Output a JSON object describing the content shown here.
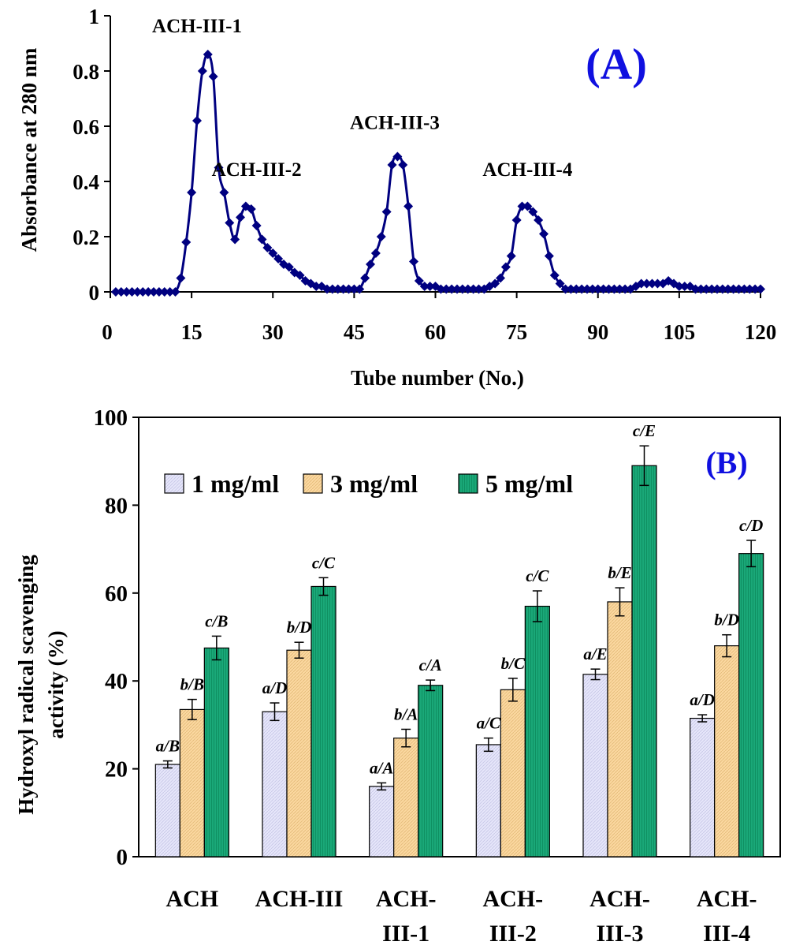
{
  "chart_data": [
    {
      "type": "line",
      "panel_label": "(A)",
      "xlabel": "Tube number (No.)",
      "ylabel": "Absorbance at 280 nm",
      "xlim": [
        0,
        120
      ],
      "ylim": [
        0,
        1
      ],
      "x_ticks": [
        0,
        15,
        30,
        45,
        60,
        75,
        90,
        105,
        120
      ],
      "y_ticks": [
        0,
        0.2,
        0.4,
        0.6,
        0.8,
        1
      ],
      "x_tick_labels": [
        "0",
        "15",
        "30",
        "45",
        "60",
        "75",
        "90",
        "105",
        "120"
      ],
      "y_tick_labels": [
        "0",
        "0.2",
        "0.4",
        "0.6",
        "0.8",
        "1"
      ],
      "color": "#000080",
      "series": [
        {
          "name": "Absorbance",
          "x": [
            1,
            2,
            3,
            4,
            5,
            6,
            7,
            8,
            9,
            10,
            11,
            12,
            13,
            14,
            15,
            16,
            17,
            18,
            19,
            20,
            21,
            22,
            23,
            24,
            25,
            26,
            27,
            28,
            29,
            30,
            31,
            32,
            33,
            34,
            35,
            36,
            37,
            38,
            39,
            40,
            41,
            42,
            43,
            44,
            45,
            46,
            47,
            48,
            49,
            50,
            51,
            52,
            53,
            54,
            55,
            56,
            57,
            58,
            59,
            60,
            61,
            62,
            63,
            64,
            65,
            66,
            67,
            68,
            69,
            70,
            71,
            72,
            73,
            74,
            75,
            76,
            77,
            78,
            79,
            80,
            81,
            82,
            83,
            84,
            85,
            86,
            87,
            88,
            89,
            90,
            91,
            92,
            93,
            94,
            95,
            96,
            97,
            98,
            99,
            100,
            101,
            102,
            103,
            104,
            105,
            106,
            107,
            108,
            109,
            110,
            111,
            112,
            113,
            114,
            115,
            116,
            117,
            118,
            119,
            120
          ],
          "y": [
            0,
            0,
            0,
            0,
            0,
            0,
            0,
            0,
            0,
            0,
            0,
            0,
            0.05,
            0.18,
            0.36,
            0.62,
            0.8,
            0.86,
            0.78,
            0.45,
            0.36,
            0.25,
            0.19,
            0.27,
            0.31,
            0.3,
            0.24,
            0.19,
            0.16,
            0.14,
            0.12,
            0.1,
            0.09,
            0.07,
            0.06,
            0.04,
            0.03,
            0.02,
            0.02,
            0.01,
            0.01,
            0.01,
            0.01,
            0.01,
            0.01,
            0.01,
            0.05,
            0.1,
            0.14,
            0.2,
            0.29,
            0.46,
            0.49,
            0.46,
            0.31,
            0.11,
            0.04,
            0.02,
            0.02,
            0.02,
            0.01,
            0.01,
            0.01,
            0.01,
            0.01,
            0.01,
            0.01,
            0.01,
            0.01,
            0.02,
            0.03,
            0.05,
            0.09,
            0.13,
            0.26,
            0.31,
            0.31,
            0.29,
            0.26,
            0.21,
            0.13,
            0.06,
            0.03,
            0.01,
            0.01,
            0.01,
            0.01,
            0.01,
            0.01,
            0.01,
            0.01,
            0.01,
            0.01,
            0.01,
            0.01,
            0.01,
            0.02,
            0.03,
            0.03,
            0.03,
            0.03,
            0.03,
            0.04,
            0.03,
            0.02,
            0.02,
            0.02,
            0.01,
            0.01,
            0.01,
            0.01,
            0.01,
            0.01,
            0.01,
            0.01,
            0.01,
            0.01,
            0.01,
            0.01,
            0.01
          ]
        }
      ],
      "annotations": [
        {
          "text": "ACH-III-1",
          "x": 16,
          "y": 0.94
        },
        {
          "text": "ACH-III-2",
          "x": 27,
          "y": 0.42
        },
        {
          "text": "ACH-III-3",
          "x": 52.5,
          "y": 0.59
        },
        {
          "text": "ACH-III-4",
          "x": 77,
          "y": 0.42
        }
      ]
    },
    {
      "type": "bar",
      "panel_label": "(B)",
      "ylabel_lines": [
        "Hydroxyl radical scavenging",
        "activity (%)"
      ],
      "ylim": [
        0,
        100
      ],
      "y_ticks": [
        0,
        20,
        40,
        60,
        80,
        100
      ],
      "y_tick_labels": [
        "0",
        "20",
        "40",
        "60",
        "80",
        "100"
      ],
      "category_lines": [
        [
          "ACH"
        ],
        [
          "ACH-III"
        ],
        [
          "ACH-",
          "III-1"
        ],
        [
          "ACH-",
          "III-2"
        ],
        [
          "ACH-",
          "III-3"
        ],
        [
          "ACH-",
          "III-4"
        ]
      ],
      "legend_position": "top-left",
      "series": [
        {
          "name": "1 mg/ml",
          "color": "#e6e6fa",
          "values": [
            21,
            33,
            16,
            25.5,
            41.5,
            31.5
          ],
          "errors": [
            0.8,
            2,
            0.8,
            1.5,
            1.2,
            0.8
          ],
          "labels": [
            "a/B",
            "a/D",
            "a/A",
            "a/C",
            "a/E",
            "a/D"
          ]
        },
        {
          "name": "3 mg/ml",
          "color": "#fbd8a0",
          "values": [
            33.5,
            47,
            27,
            38,
            58,
            48
          ],
          "errors": [
            2.3,
            1.8,
            2,
            2.6,
            3.2,
            2.5
          ],
          "labels": [
            "b/B",
            "b/D",
            "b/A",
            "b/C",
            "b/E",
            "b/D"
          ]
        },
        {
          "name": "5 mg/ml",
          "color": "#1aa878",
          "values": [
            47.5,
            61.5,
            39,
            57,
            89,
            69
          ],
          "errors": [
            2.7,
            2,
            1.2,
            3.5,
            4.5,
            3
          ],
          "labels": [
            "c/B",
            "c/C",
            "c/A",
            "c/C",
            "c/E",
            "c/D"
          ]
        }
      ]
    }
  ]
}
